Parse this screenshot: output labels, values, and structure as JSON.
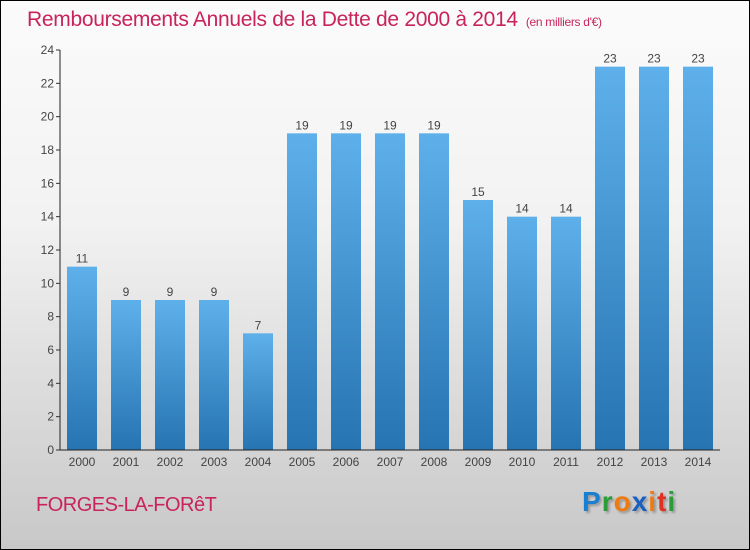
{
  "chart_data": {
    "type": "bar",
    "title": "Remboursements Annuels de la Dette de 2000 à 2014",
    "subtitle": "(en milliers d'€)",
    "categories": [
      "2000",
      "2001",
      "2002",
      "2003",
      "2004",
      "2005",
      "2006",
      "2007",
      "2008",
      "2009",
      "2010",
      "2011",
      "2012",
      "2013",
      "2014"
    ],
    "values": [
      11,
      9,
      9,
      9,
      7,
      19,
      19,
      19,
      19,
      15,
      14,
      14,
      23,
      23,
      23
    ],
    "ylim": [
      0,
      24
    ],
    "yticks": [
      0,
      2,
      4,
      6,
      8,
      10,
      12,
      14,
      16,
      18,
      20,
      22,
      24
    ],
    "xlabel": "",
    "ylabel": "",
    "bar_color": "#3a8fd0"
  },
  "footer": {
    "city": "FORGES-LA-FORêT",
    "logo": "Proxiti"
  }
}
